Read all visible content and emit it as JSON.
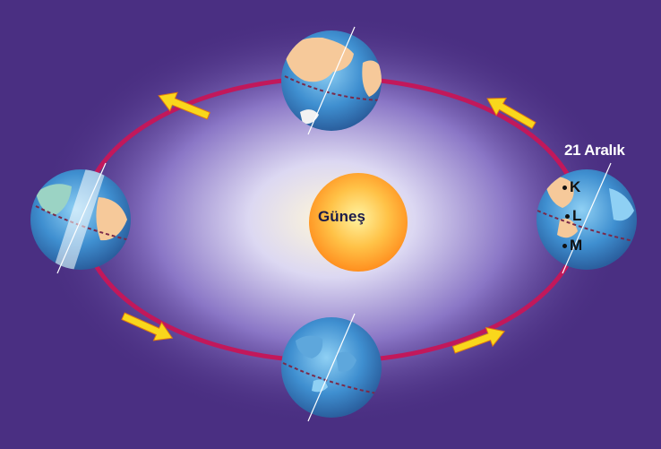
{
  "diagram": {
    "sun_label": "Güneş",
    "date_label": "21 Aralık",
    "points": [
      {
        "label": "K"
      },
      {
        "label": "L"
      },
      {
        "label": "M"
      }
    ]
  },
  "colors": {
    "background": "#4a2f82",
    "orbit": "#c2185b",
    "arrow": "#f9d71c",
    "sun": "#ffa726",
    "ocean": "#3f8fd0",
    "land": "#f6c99a"
  }
}
